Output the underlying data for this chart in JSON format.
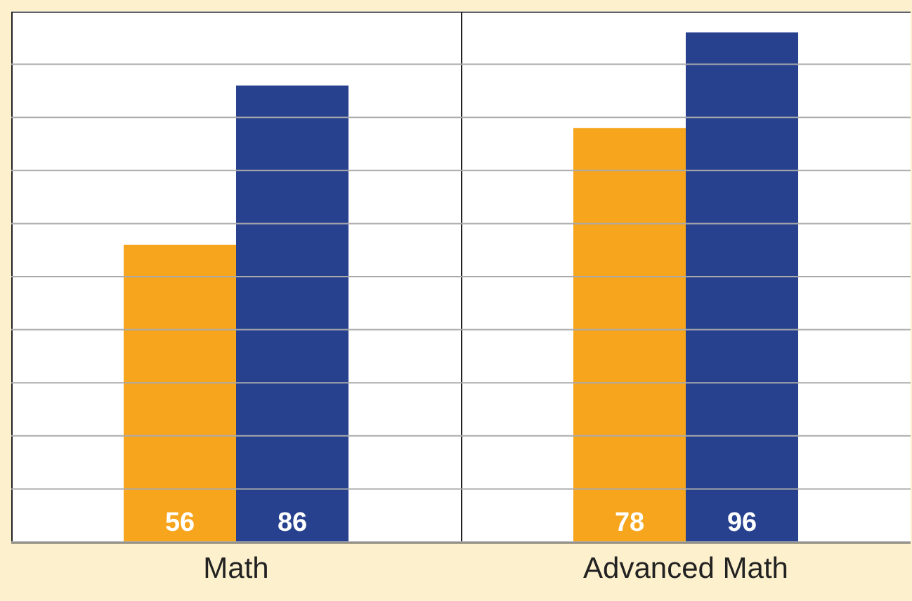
{
  "chart_data": [
    {
      "type": "bar",
      "categories": [
        "Math"
      ],
      "series": [
        {
          "color": "#f6a51c",
          "values": [
            56
          ]
        },
        {
          "color": "#27418e",
          "values": [
            86
          ]
        }
      ],
      "ylim": [
        0,
        100
      ],
      "yticks": [
        {
          "value": 0,
          "label": null
        },
        {
          "value": 10,
          "label": null
        },
        {
          "value": 20,
          "label": null
        },
        {
          "value": 30,
          "label": null
        },
        {
          "value": 40,
          "label": null
        },
        {
          "value": 50,
          "label": null
        },
        {
          "value": 60,
          "label": null
        },
        {
          "value": 70,
          "label": null
        },
        {
          "value": 80,
          "label": null
        },
        {
          "value": 90,
          "label": null
        },
        {
          "value": 100,
          "label": null
        }
      ],
      "grid": "y",
      "data_labels": true
    },
    {
      "type": "bar",
      "categories": [
        "Advanced Math"
      ],
      "series": [
        {
          "color": "#f6a51c",
          "values": [
            78
          ]
        },
        {
          "color": "#27418e",
          "values": [
            96
          ]
        }
      ],
      "ylim": [
        0,
        100
      ],
      "yticks": [
        {
          "value": 0,
          "label": null
        },
        {
          "value": 10,
          "label": null
        },
        {
          "value": 20,
          "label": null
        },
        {
          "value": 30,
          "label": null
        },
        {
          "value": 40,
          "label": null
        },
        {
          "value": 50,
          "label": null
        },
        {
          "value": 60,
          "label": null
        },
        {
          "value": 70,
          "label": null
        },
        {
          "value": 80,
          "label": null
        },
        {
          "value": 90,
          "label": null
        },
        {
          "value": 100,
          "label": null
        }
      ],
      "grid": "y",
      "data_labels": true
    }
  ]
}
